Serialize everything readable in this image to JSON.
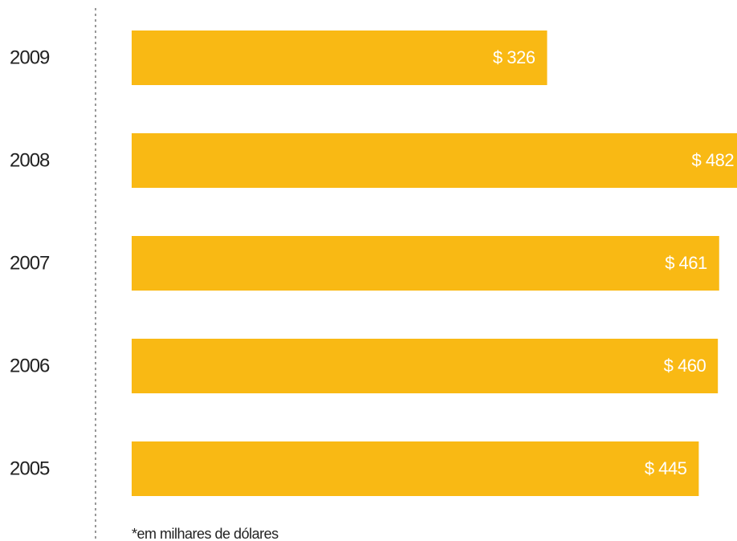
{
  "chart_data": {
    "type": "bar",
    "orientation": "horizontal",
    "categories": [
      "2009",
      "2008",
      "2007",
      "2006",
      "2005"
    ],
    "values": [
      326,
      482,
      461,
      460,
      445
    ],
    "value_labels": [
      "$ 326",
      "$ 482",
      "$ 461",
      "$ 460",
      "$ 445"
    ],
    "color": "#f9b914",
    "xlim": [
      0,
      475
    ],
    "note": "*em milhares de dólares"
  }
}
